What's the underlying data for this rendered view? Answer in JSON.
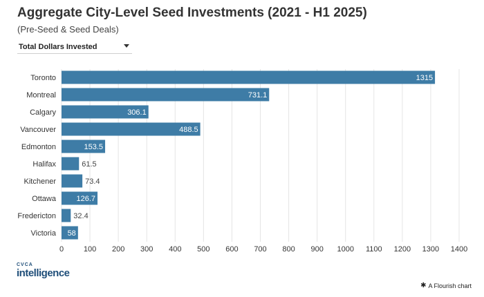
{
  "title": "Aggregate City-Level Seed Investments (2021 - H1 2025)",
  "subtitle": "(Pre-Seed & Seed Deals)",
  "dropdown": {
    "selected": "Total Dollars Invested"
  },
  "logo": {
    "top": "CVCA",
    "main": "intelligence"
  },
  "credit": {
    "icon": "flourish-star-icon",
    "text": "A Flourish chart"
  },
  "colors": {
    "bar": "#3e7ca6",
    "bar_label_inside": "#ffffff",
    "bar_label_outside": "#444444",
    "grid": "#e4e4e4"
  },
  "chart_data": {
    "type": "bar",
    "orientation": "horizontal",
    "categories": [
      "Toronto",
      "Montreal",
      "Calgary",
      "Vancouver",
      "Edmonton",
      "Halifax",
      "Kitchener",
      "Ottawa",
      "Fredericton",
      "Victoria"
    ],
    "values": [
      1315,
      731.1,
      306.1,
      488.5,
      153.5,
      61.5,
      73.4,
      126.7,
      32.4,
      58
    ],
    "value_labels": [
      "1315",
      "731.1",
      "306.1",
      "488.5",
      "153.5",
      "61.5",
      "73.4",
      "126.7",
      "32.4",
      "58"
    ],
    "xlim": [
      0,
      1400
    ],
    "xticks": [
      0,
      100,
      200,
      300,
      400,
      500,
      600,
      700,
      800,
      900,
      1000,
      1100,
      1200,
      1300,
      1400
    ],
    "grid": true,
    "legend": "none"
  }
}
